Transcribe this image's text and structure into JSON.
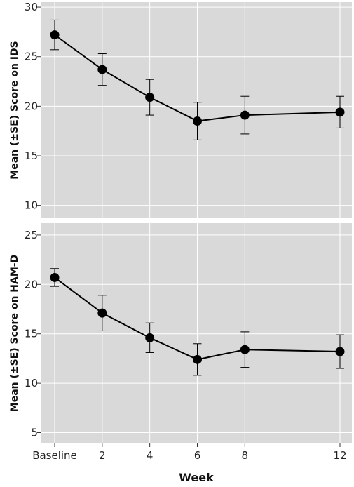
{
  "chart_data": [
    {
      "type": "line",
      "panel": "top",
      "x": [
        "Baseline",
        "2",
        "4",
        "6",
        "8",
        "12"
      ],
      "x_numeric": [
        0,
        2,
        4,
        6,
        8,
        12
      ],
      "values": [
        27.2,
        23.7,
        20.9,
        18.5,
        19.1,
        19.4
      ],
      "error": [
        1.5,
        1.6,
        1.8,
        1.9,
        1.9,
        1.6
      ],
      "ylabel": "Mean (±SE) Score on IDS",
      "xlabel": "",
      "ylim": [
        8.7,
        30.5
      ],
      "yticks": [
        10,
        15,
        20,
        25,
        30
      ],
      "grid": true,
      "background": "#d9d9d9",
      "line_color": "#000000"
    },
    {
      "type": "line",
      "panel": "bottom",
      "x": [
        "Baseline",
        "2",
        "4",
        "6",
        "8",
        "12"
      ],
      "x_numeric": [
        0,
        2,
        4,
        6,
        8,
        12
      ],
      "values": [
        20.7,
        17.1,
        14.6,
        12.4,
        13.4,
        13.2
      ],
      "error": [
        0.9,
        1.8,
        1.5,
        1.6,
        1.8,
        1.7
      ],
      "ylabel": "Mean (±SE) Score on HAM-D",
      "xlabel": "Week",
      "ylim": [
        3.9,
        26.2
      ],
      "yticks": [
        5,
        10,
        15,
        20,
        25
      ],
      "grid": true,
      "background": "#d9d9d9",
      "line_color": "#000000"
    }
  ]
}
